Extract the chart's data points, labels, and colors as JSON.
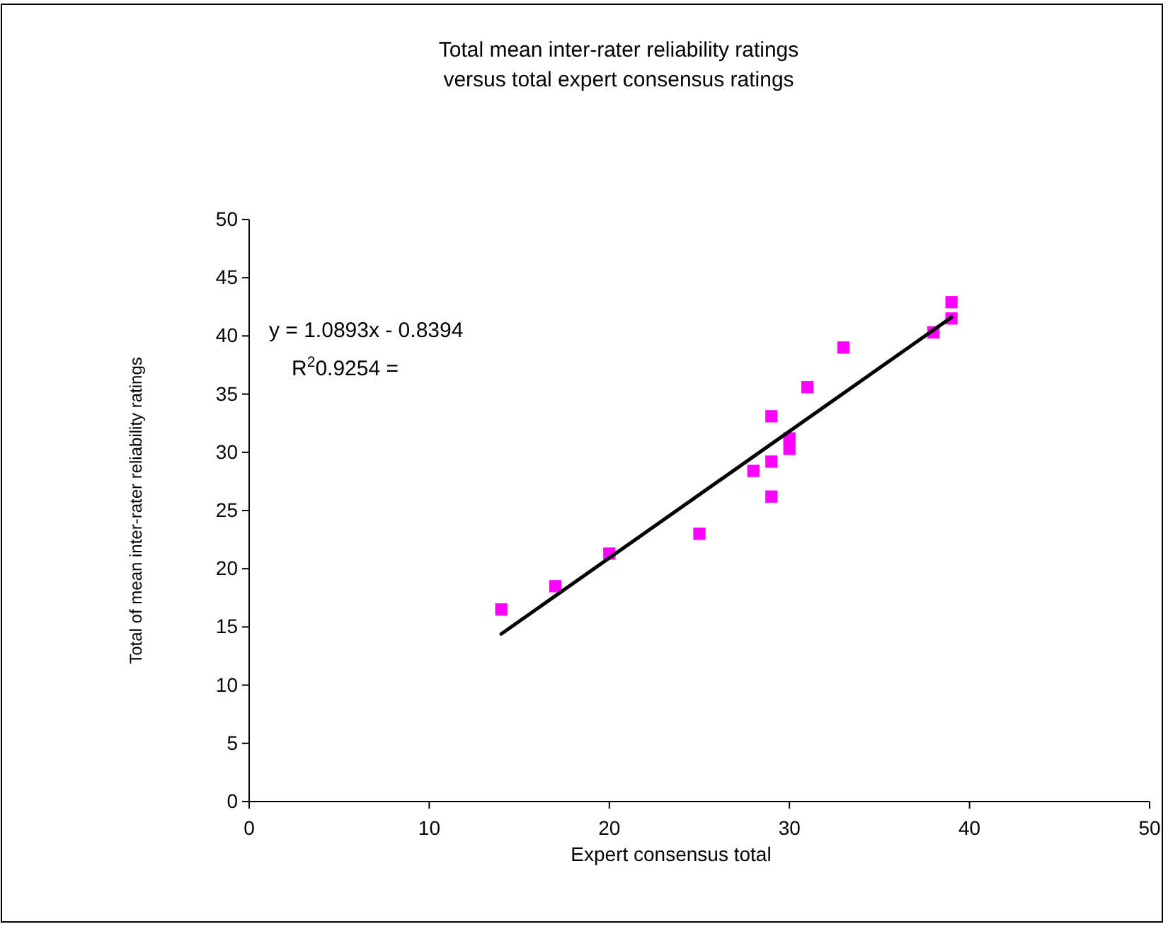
{
  "chart_data": {
    "type": "scatter",
    "title": "Total mean inter-rater reliability ratings\nversus total expert consensus ratings",
    "xlabel": "Expert consensus total",
    "ylabel": "Total of mean inter-rater reliability ratings",
    "xlim": [
      0,
      50
    ],
    "xticks": [
      0,
      10,
      20,
      30,
      40,
      50
    ],
    "ylim": [
      0,
      50
    ],
    "yticks": [
      0,
      5,
      10,
      15,
      20,
      25,
      30,
      35,
      40,
      45,
      50
    ],
    "grid": false,
    "series": [
      {
        "marker": "square",
        "color": "#ff00ff",
        "x": [
          14,
          17,
          20,
          25,
          28,
          29,
          29,
          29,
          30,
          30,
          31,
          33,
          38,
          39,
          39
        ],
        "values": [
          16.5,
          18.5,
          21.3,
          23.0,
          28.4,
          26.2,
          29.2,
          33.1,
          30.3,
          31.2,
          35.6,
          39.0,
          40.3,
          41.5,
          42.9
        ]
      },
      {
        "type": "line",
        "color": "#000000",
        "x": [
          14,
          39
        ],
        "values": [
          14.4,
          41.6
        ]
      }
    ],
    "annotations": [
      "y = 1.0893x - 0.8394",
      "R$^{2}$0.9254 ="
    ]
  }
}
